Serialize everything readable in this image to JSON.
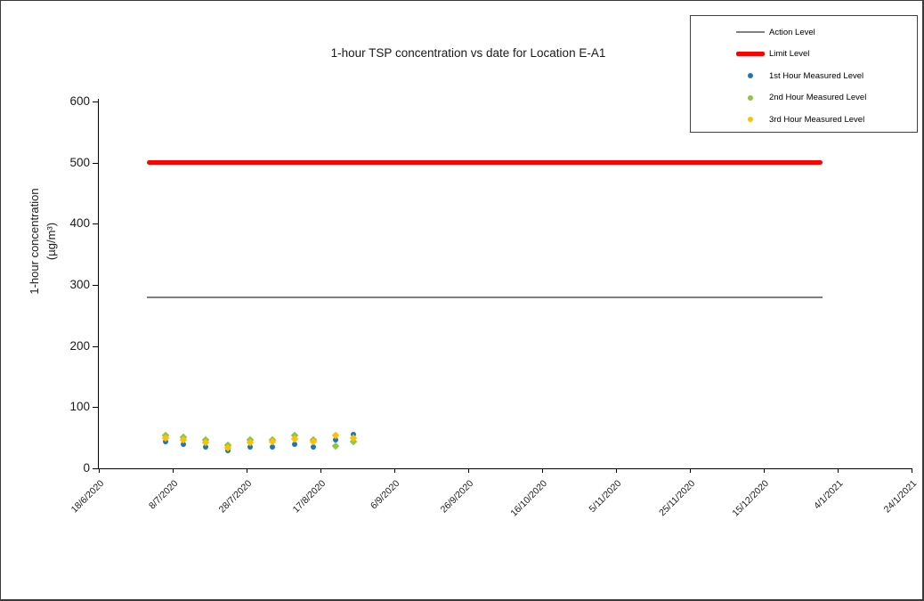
{
  "window": {
    "background": "#FFFFFF",
    "border_color": "#3A3A3A"
  },
  "chart_data": {
    "type": "scatter",
    "title": "1-hour TSP concentration vs date for Location E-A1",
    "ylabel": [
      "1-hour concentration",
      "(µg/m³)"
    ],
    "xlabel": "",
    "ylim": [
      0,
      600
    ],
    "yticks": [
      0,
      100,
      200,
      300,
      400,
      500,
      600
    ],
    "xticks": [
      "18/6/2020",
      "8/7/2020",
      "28/7/2020",
      "17/8/2020",
      "6/9/2020",
      "26/9/2020",
      "16/10/2020",
      "5/11/2020",
      "25/11/2020",
      "15/12/2020",
      "4/1/2021",
      "24/1/2021"
    ],
    "xtick_interval_days": 20,
    "grid": "off",
    "legend_position": "top-right",
    "axis_color": "#000000",
    "reference_lines": [
      {
        "name": "Action Level",
        "value": 279,
        "color": "#808080",
        "style": "thin",
        "start_day": 13,
        "end_day": 196,
        "start_date": "1/7/2020",
        "end_date": "31/12/2020"
      },
      {
        "name": "Limit Level",
        "value": 500,
        "color": "#FF0000",
        "style": "thick",
        "start_day": 13,
        "end_day": 196,
        "start_date": "1/7/2020",
        "end_date": "31/12/2020"
      }
    ],
    "series": [
      {
        "name": "1st Hour Measured Level",
        "color": "#1F75BB",
        "marker": "circle",
        "points": [
          {
            "date": "6/7/2020",
            "day": 18,
            "value": 43
          },
          {
            "date": "11/7/2020",
            "day": 23,
            "value": 39
          },
          {
            "date": "17/7/2020",
            "day": 29,
            "value": 35
          },
          {
            "date": "23/7/2020",
            "day": 35,
            "value": 29
          },
          {
            "date": "29/7/2020",
            "day": 41,
            "value": 35
          },
          {
            "date": "4/8/2020",
            "day": 47,
            "value": 35
          },
          {
            "date": "10/8/2020",
            "day": 53,
            "value": 40
          },
          {
            "date": "15/8/2020",
            "day": 58,
            "value": 35
          },
          {
            "date": "21/8/2020",
            "day": 64,
            "value": 46
          },
          {
            "date": "26/8/2020",
            "day": 69,
            "value": 55
          }
        ]
      },
      {
        "name": "2nd Hour Measured Level",
        "color": "#8DC63F",
        "marker": "diamond",
        "points": [
          {
            "date": "6/7/2020",
            "day": 18,
            "value": 54
          },
          {
            "date": "11/7/2020",
            "day": 23,
            "value": 51
          },
          {
            "date": "17/7/2020",
            "day": 29,
            "value": 46
          },
          {
            "date": "23/7/2020",
            "day": 35,
            "value": 38
          },
          {
            "date": "29/7/2020",
            "day": 41,
            "value": 46
          },
          {
            "date": "4/8/2020",
            "day": 47,
            "value": 47
          },
          {
            "date": "10/8/2020",
            "day": 53,
            "value": 54
          },
          {
            "date": "15/8/2020",
            "day": 58,
            "value": 46
          },
          {
            "date": "21/8/2020",
            "day": 64,
            "value": 36
          },
          {
            "date": "26/8/2020",
            "day": 69,
            "value": 44
          }
        ]
      },
      {
        "name": "3rd Hour Measured Level",
        "color": "#FFC000",
        "marker": "diamond",
        "points": [
          {
            "date": "6/7/2020",
            "day": 18,
            "value": 49
          },
          {
            "date": "11/7/2020",
            "day": 23,
            "value": 46
          },
          {
            "date": "17/7/2020",
            "day": 29,
            "value": 42
          },
          {
            "date": "23/7/2020",
            "day": 35,
            "value": 34
          },
          {
            "date": "29/7/2020",
            "day": 41,
            "value": 42
          },
          {
            "date": "4/8/2020",
            "day": 47,
            "value": 43
          },
          {
            "date": "10/8/2020",
            "day": 53,
            "value": 48
          },
          {
            "date": "15/8/2020",
            "day": 58,
            "value": 44
          },
          {
            "date": "21/8/2020",
            "day": 64,
            "value": 54
          },
          {
            "date": "26/8/2020",
            "day": 69,
            "value": 49
          }
        ]
      }
    ],
    "legend": {
      "entries": [
        {
          "label": "Action Level",
          "sample": "line",
          "color": "#808080"
        },
        {
          "label": "Limit Level",
          "sample": "line-thick",
          "color": "#FF0000"
        },
        {
          "label": "1st Hour Measured Level",
          "sample": "dot",
          "color": "#1F75BB"
        },
        {
          "label": "2nd Hour Measured Level",
          "sample": "dot",
          "color": "#8DC63F"
        },
        {
          "label": "3rd Hour Measured Level",
          "sample": "dot",
          "color": "#FFC000"
        }
      ]
    }
  }
}
